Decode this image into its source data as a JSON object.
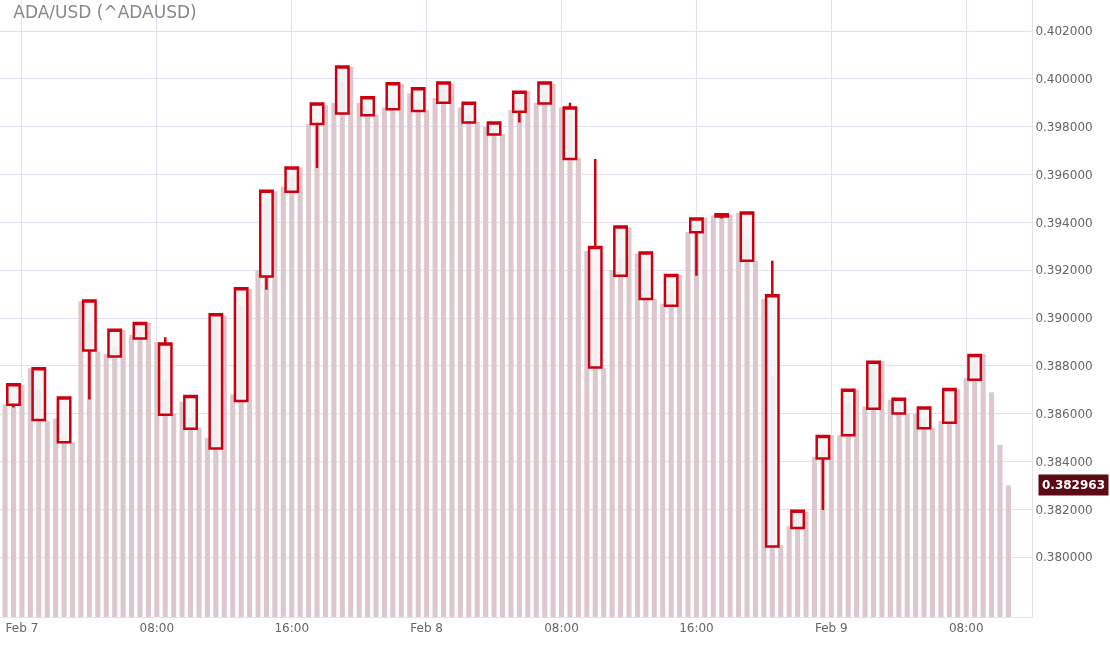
{
  "chart_data": {
    "type": "candlestick",
    "title": "ADA/USD (^ADAUSD)",
    "xlim": [
      "--02-06T22:42",
      "--02-09T11:54"
    ],
    "xticks": [
      {
        "value": "--02-07T00:00",
        "label": "Feb 7"
      },
      {
        "value": "--02-07T08:00",
        "label": "08:00"
      },
      {
        "value": "--02-07T16:00",
        "label": "16:00"
      },
      {
        "value": "--02-08T00:00",
        "label": "Feb 8"
      },
      {
        "value": "--02-08T08:00",
        "label": "08:00"
      },
      {
        "value": "--02-08T16:00",
        "label": "16:00"
      },
      {
        "value": "--02-09T00:00",
        "label": "Feb 9"
      },
      {
        "value": "--02-09T08:00",
        "label": "08:00"
      }
    ],
    "ylim": [
      0.3775,
      0.4033
    ],
    "yticks": [
      {
        "value": 0.38,
        "label": "0.380000"
      },
      {
        "value": 0.382,
        "label": "0.382000"
      },
      {
        "value": 0.384,
        "label": "0.384000"
      },
      {
        "value": 0.386,
        "label": "0.386000"
      },
      {
        "value": 0.388,
        "label": "0.388000"
      },
      {
        "value": 0.39,
        "label": "0.390000"
      },
      {
        "value": 0.392,
        "label": "0.392000"
      },
      {
        "value": 0.394,
        "label": "0.394000"
      },
      {
        "value": 0.396,
        "label": "0.396000"
      },
      {
        "value": 0.398,
        "label": "0.398000"
      },
      {
        "value": 0.4,
        "label": "0.400000"
      },
      {
        "value": 0.402,
        "label": "0.402000"
      }
    ],
    "grid": true,
    "annotations": [
      "0.382963"
    ],
    "series": [
      {
        "type": "bar",
        "color": "#dcc8cc",
        "x": [
          "--02-06T23:00",
          "--02-06T23:30",
          "--02-07T00:00",
          "--02-07T00:30",
          "--02-07T01:00",
          "--02-07T01:30",
          "--02-07T02:00",
          "--02-07T02:30",
          "--02-07T03:00",
          "--02-07T03:30",
          "--02-07T04:00",
          "--02-07T04:30",
          "--02-07T05:00",
          "--02-07T05:30",
          "--02-07T06:00",
          "--02-07T06:30",
          "--02-07T07:00",
          "--02-07T07:30",
          "--02-07T08:00",
          "--02-07T08:30",
          "--02-07T09:00",
          "--02-07T09:30",
          "--02-07T10:00",
          "--02-07T10:30",
          "--02-07T11:00",
          "--02-07T11:30",
          "--02-07T12:00",
          "--02-07T12:30",
          "--02-07T13:00",
          "--02-07T13:30",
          "--02-07T14:00",
          "--02-07T14:30",
          "--02-07T15:00",
          "--02-07T15:30",
          "--02-07T16:00",
          "--02-07T16:30",
          "--02-07T17:00",
          "--02-07T17:30",
          "--02-07T18:00",
          "--02-07T18:30",
          "--02-07T19:00",
          "--02-07T19:30",
          "--02-07T20:00",
          "--02-07T20:30",
          "--02-07T21:00",
          "--02-07T21:30",
          "--02-07T22:00",
          "--02-07T22:30",
          "--02-07T23:00",
          "--02-07T23:30",
          "--02-08T00:00",
          "--02-08T00:30",
          "--02-08T01:00",
          "--02-08T01:30",
          "--02-08T02:00",
          "--02-08T02:30",
          "--02-08T03:00",
          "--02-08T03:30",
          "--02-08T04:00",
          "--02-08T04:30",
          "--02-08T05:00",
          "--02-08T05:30",
          "--02-08T06:00",
          "--02-08T06:30",
          "--02-08T07:00",
          "--02-08T07:30",
          "--02-08T08:00",
          "--02-08T08:30",
          "--02-08T09:00",
          "--02-08T09:30",
          "--02-08T10:00",
          "--02-08T10:30",
          "--02-08T11:00",
          "--02-08T11:30",
          "--02-08T12:00",
          "--02-08T12:30",
          "--02-08T13:00",
          "--02-08T13:30",
          "--02-08T14:00",
          "--02-08T14:30",
          "--02-08T15:00",
          "--02-08T15:30",
          "--02-08T16:00",
          "--02-08T16:30",
          "--02-08T17:00",
          "--02-08T17:30",
          "--02-08T18:00",
          "--02-08T18:30",
          "--02-08T19:00",
          "--02-08T19:30",
          "--02-08T20:00",
          "--02-08T20:30",
          "--02-08T21:00",
          "--02-08T21:30",
          "--02-08T22:00",
          "--02-08T22:30",
          "--02-08T23:00",
          "--02-08T23:30",
          "--02-09T00:00",
          "--02-09T00:30",
          "--02-09T01:00",
          "--02-09T01:30",
          "--02-09T02:00",
          "--02-09T02:30",
          "--02-09T03:00",
          "--02-09T03:30",
          "--02-09T04:00",
          "--02-09T04:30",
          "--02-09T05:00",
          "--02-09T05:30",
          "--02-09T06:00",
          "--02-09T06:30",
          "--02-09T07:00",
          "--02-09T07:30",
          "--02-09T08:00",
          "--02-09T08:30",
          "--02-09T09:00",
          "--02-09T09:30",
          "--02-09T10:00",
          "--02-09T10:30"
        ],
        "values": [
          0.3864,
          0.3864,
          0.3872,
          0.3879,
          0.387,
          0.3857,
          0.3858,
          0.3851,
          0.3848,
          0.3907,
          0.3898,
          0.3886,
          0.3885,
          0.3888,
          0.3895,
          0.3893,
          0.3895,
          0.3898,
          0.389,
          0.3874,
          0.386,
          0.3865,
          0.3858,
          0.3854,
          0.385,
          0.39,
          0.3901,
          0.3868,
          0.3905,
          0.3912,
          0.392,
          0.395,
          0.3953,
          0.3955,
          0.396,
          0.3963,
          0.3981,
          0.3981,
          0.3989,
          0.399,
          0.3999,
          0.4005,
          0.399,
          0.3987,
          0.3985,
          0.3988,
          0.3991,
          0.3998,
          0.3994,
          0.399,
          0.3987,
          0.3992,
          0.3997,
          0.3998,
          0.3988,
          0.3985,
          0.3982,
          0.398,
          0.3979,
          0.3977,
          0.3987,
          0.3992,
          0.3995,
          0.399,
          0.3995,
          0.3998,
          0.3988,
          0.3985,
          0.3967,
          0.3928,
          0.3912,
          0.3879,
          0.392,
          0.3925,
          0.3938,
          0.3927,
          0.392,
          0.3908,
          0.3906,
          0.3912,
          0.3918,
          0.3936,
          0.394,
          0.3942,
          0.3943,
          0.3943,
          0.3943,
          0.3944,
          0.3933,
          0.3924,
          0.3908,
          0.3876,
          0.3805,
          0.3813,
          0.3818,
          0.3819,
          0.3842,
          0.3845,
          0.3851,
          0.3851,
          0.3865,
          0.387,
          0.3863,
          0.3879,
          0.3882,
          0.3866,
          0.3864,
          0.386,
          0.386,
          0.3858,
          0.3854,
          0.3857,
          0.3862,
          0.387,
          0.3875,
          0.3882,
          0.3885,
          0.3869,
          0.3847,
          0.383
        ]
      },
      {
        "color": "#cc0011",
        "x": [
          "--02-06T23:30",
          "--02-07T01:00",
          "--02-07T02:30",
          "--02-07T04:00",
          "--02-07T05:30",
          "--02-07T07:00",
          "--02-07T08:30",
          "--02-07T10:00",
          "--02-07T11:30",
          "--02-07T13:00",
          "--02-07T14:30",
          "--02-07T16:00",
          "--02-07T17:30",
          "--02-07T19:00",
          "--02-07T20:30",
          "--02-07T22:00",
          "--02-07T23:30",
          "--02-08T01:00",
          "--02-08T02:30",
          "--02-08T04:00",
          "--02-08T05:30",
          "--02-08T07:00",
          "--02-08T08:30",
          "--02-08T10:00",
          "--02-08T11:30",
          "--02-08T13:00",
          "--02-08T14:30",
          "--02-08T16:00",
          "--02-08T17:30",
          "--02-08T19:00",
          "--02-08T20:30",
          "--02-08T22:00",
          "--02-08T23:30",
          "--02-09T01:00",
          "--02-09T02:30",
          "--02-09T04:00",
          "--02-09T05:30",
          "--02-09T07:00",
          "--02-09T08:30"
        ],
        "ohlc": [
          [
            0.38638,
            0.38723,
            0.38626,
            0.38723
          ],
          [
            0.38574,
            0.3879,
            0.38574,
            0.3879
          ],
          [
            0.38481,
            0.38668,
            0.38481,
            0.38668
          ],
          [
            0.38864,
            0.39073,
            0.38659,
            0.39073
          ],
          [
            0.38839,
            0.38951,
            0.38839,
            0.38951
          ],
          [
            0.38915,
            0.38979,
            0.38915,
            0.38979
          ],
          [
            0.38596,
            0.3892,
            0.38596,
            0.38894
          ],
          [
            0.38537,
            0.38674,
            0.38537,
            0.38674
          ],
          [
            0.38455,
            0.39016,
            0.38455,
            0.39016
          ],
          [
            0.38653,
            0.39125,
            0.38653,
            0.39125
          ],
          [
            0.39174,
            0.39532,
            0.39118,
            0.39532
          ],
          [
            0.39528,
            0.3963,
            0.39528,
            0.3963
          ],
          [
            0.39811,
            0.39897,
            0.39627,
            0.39897
          ],
          [
            0.39855,
            0.40052,
            0.39855,
            0.40052
          ],
          [
            0.39848,
            0.39923,
            0.39848,
            0.39923
          ],
          [
            0.39873,
            0.39982,
            0.39873,
            0.39982
          ],
          [
            0.39866,
            0.39961,
            0.39866,
            0.39961
          ],
          [
            0.399,
            0.39985,
            0.399,
            0.39985
          ],
          [
            0.39818,
            0.399,
            0.39818,
            0.399
          ],
          [
            0.39768,
            0.39818,
            0.39768,
            0.39818
          ],
          [
            0.39863,
            0.39946,
            0.39818,
            0.39946
          ],
          [
            0.39897,
            0.39985,
            0.39897,
            0.39985
          ],
          [
            0.39665,
            0.399,
            0.39665,
            0.39881
          ],
          [
            0.38793,
            0.39665,
            0.38793,
            0.39297
          ],
          [
            0.39177,
            0.39383,
            0.39177,
            0.39383
          ],
          [
            0.3908,
            0.39274,
            0.3908,
            0.39274
          ],
          [
            0.39051,
            0.3918,
            0.39051,
            0.3918
          ],
          [
            0.39359,
            0.39416,
            0.39177,
            0.39416
          ],
          [
            0.39425,
            0.39434,
            0.39416,
            0.39434
          ],
          [
            0.3924,
            0.39441,
            0.3924,
            0.39441
          ],
          [
            0.38045,
            0.3924,
            0.38045,
            0.39095
          ],
          [
            0.38122,
            0.38194,
            0.38122,
            0.38194
          ],
          [
            0.38413,
            0.38507,
            0.38197,
            0.38507
          ],
          [
            0.3851,
            0.387,
            0.38505,
            0.387
          ],
          [
            0.38621,
            0.38817,
            0.38621,
            0.38817
          ],
          [
            0.38601,
            0.38663,
            0.38601,
            0.38663
          ],
          [
            0.38539,
            0.38626,
            0.38539,
            0.38626
          ],
          [
            0.38562,
            0.38703,
            0.38562,
            0.38703
          ],
          [
            0.38742,
            0.38846,
            0.38742,
            0.38846
          ]
        ]
      }
    ]
  }
}
